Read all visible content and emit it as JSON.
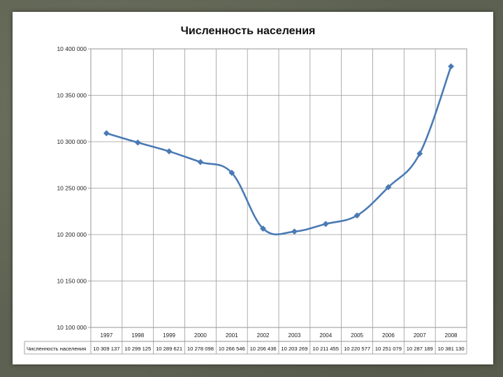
{
  "chart_data": {
    "type": "line",
    "title": "Численность населения",
    "xlabel": "",
    "ylabel": "",
    "ylim": [
      10100000,
      10400000
    ],
    "yticks": [
      10100000,
      10150000,
      10200000,
      10250000,
      10300000,
      10350000,
      10400000
    ],
    "ytick_labels": [
      "10 100 000",
      "10 150 000",
      "10 200 000",
      "10 250 000",
      "10 300 000",
      "10 350 000",
      "10 400 000"
    ],
    "categories": [
      "1997",
      "1998",
      "1999",
      "2000",
      "2001",
      "2002",
      "2003",
      "2004",
      "2005",
      "2006",
      "2007",
      "2008"
    ],
    "grid": true,
    "legend": "data-table",
    "series": [
      {
        "name": "Численность населения",
        "color": "#4a7ab4",
        "values": [
          10309137,
          10299125,
          10289621,
          10278098,
          10266546,
          10206436,
          10203269,
          10211455,
          10220577,
          10251079,
          10287189,
          10381130
        ],
        "value_labels": [
          "10 309 137",
          "10 299 125",
          "10 289 621",
          "10 278 098",
          "10 266 546",
          "10 206 436",
          "10 203 269",
          "10 211 455",
          "10 220 577",
          "10 251 079",
          "10 287 189",
          "10 381 130"
        ]
      }
    ]
  }
}
